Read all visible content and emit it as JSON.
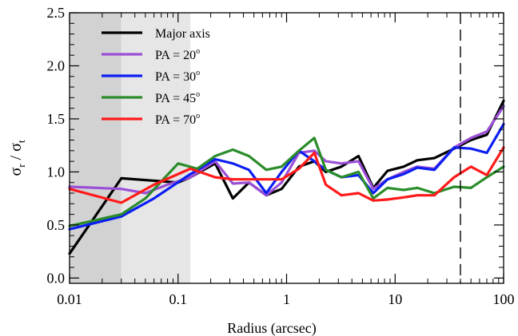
{
  "chart_data": {
    "type": "line",
    "title": "",
    "xlabel": "Radius (arcsec)",
    "ylabel": {
      "main": "σ",
      "sub1": "r",
      "slash": " / ",
      "main2": "σ",
      "sub2": "t"
    },
    "xscale": "log",
    "xlim": [
      0.01,
      100
    ],
    "ylim": [
      -0.05,
      2.5
    ],
    "x_ticks": [
      {
        "value": 0.01,
        "label": "0.01"
      },
      {
        "value": 0.1,
        "label": "0.1"
      },
      {
        "value": 1,
        "label": "1"
      },
      {
        "value": 10,
        "label": "10"
      },
      {
        "value": 100,
        "label": "100"
      }
    ],
    "y_ticks": [
      {
        "value": 0.0,
        "label": "0.0"
      },
      {
        "value": 0.5,
        "label": "0.5"
      },
      {
        "value": 1.0,
        "label": "1.0"
      },
      {
        "value": 1.5,
        "label": "1.5"
      },
      {
        "value": 2.0,
        "label": "2.0"
      },
      {
        "value": 2.5,
        "label": "2.5"
      }
    ],
    "shaded_regions": [
      {
        "x_from": 0.01,
        "x_to": 0.03,
        "color": "#d2d2d2"
      },
      {
        "x_from": 0.03,
        "x_to": 0.13,
        "color": "#e6e6e6"
      }
    ],
    "vertical_line": {
      "x": 40,
      "style": "dashed"
    },
    "legend_position": "top-left",
    "series": [
      {
        "name": "Major axis",
        "color": "#000000",
        "points": [
          [
            0.01,
            0.23
          ],
          [
            0.03,
            0.94
          ],
          [
            0.1,
            0.9
          ],
          [
            0.13,
            0.95
          ],
          [
            0.22,
            1.08
          ],
          [
            0.32,
            0.75
          ],
          [
            0.45,
            0.9
          ],
          [
            0.65,
            0.78
          ],
          [
            0.9,
            0.84
          ],
          [
            1.3,
            1.05
          ],
          [
            1.8,
            1.1
          ],
          [
            2.3,
            1.0
          ],
          [
            3.2,
            1.05
          ],
          [
            4.6,
            1.15
          ],
          [
            6.3,
            0.85
          ],
          [
            8.5,
            1.01
          ],
          [
            12,
            1.05
          ],
          [
            16,
            1.11
          ],
          [
            23,
            1.13
          ],
          [
            35,
            1.22
          ],
          [
            50,
            1.3
          ],
          [
            70,
            1.35
          ],
          [
            100,
            1.67
          ]
        ]
      },
      {
        "name": "PA = 20",
        "sup": "o",
        "color": "#9b4fd6",
        "points": [
          [
            0.01,
            0.86
          ],
          [
            0.03,
            0.84
          ],
          [
            0.05,
            0.8
          ],
          [
            0.08,
            0.88
          ],
          [
            0.13,
            0.95
          ],
          [
            0.22,
            1.1
          ],
          [
            0.32,
            0.89
          ],
          [
            0.45,
            0.9
          ],
          [
            0.65,
            0.78
          ],
          [
            0.9,
            0.9
          ],
          [
            1.3,
            1.18
          ],
          [
            1.8,
            1.2
          ],
          [
            2.3,
            1.1
          ],
          [
            3.2,
            1.08
          ],
          [
            4.6,
            1.1
          ],
          [
            6.3,
            0.84
          ],
          [
            8.5,
            0.93
          ],
          [
            12,
            1.0
          ],
          [
            16,
            1.05
          ],
          [
            23,
            1.03
          ],
          [
            35,
            1.23
          ],
          [
            50,
            1.32
          ],
          [
            70,
            1.38
          ],
          [
            100,
            1.62
          ]
        ]
      },
      {
        "name": "PA = 30",
        "sup": "o",
        "color": "#0a1ef2",
        "points": [
          [
            0.01,
            0.46
          ],
          [
            0.03,
            0.58
          ],
          [
            0.06,
            0.75
          ],
          [
            0.13,
            0.98
          ],
          [
            0.22,
            1.12
          ],
          [
            0.32,
            1.08
          ],
          [
            0.45,
            1.02
          ],
          [
            0.65,
            0.8
          ],
          [
            0.9,
            1.0
          ],
          [
            1.3,
            1.2
          ],
          [
            1.8,
            1.1
          ],
          [
            2.3,
            1.02
          ],
          [
            3.2,
            0.95
          ],
          [
            4.6,
            0.97
          ],
          [
            6.3,
            0.8
          ],
          [
            8.5,
            0.93
          ],
          [
            12,
            0.98
          ],
          [
            16,
            1.04
          ],
          [
            23,
            1.02
          ],
          [
            35,
            1.23
          ],
          [
            50,
            1.22
          ],
          [
            70,
            1.18
          ],
          [
            100,
            1.45
          ]
        ]
      },
      {
        "name": "PA = 45",
        "sup": "o",
        "color": "#2a8c2a",
        "points": [
          [
            0.01,
            0.49
          ],
          [
            0.03,
            0.6
          ],
          [
            0.05,
            0.75
          ],
          [
            0.1,
            1.08
          ],
          [
            0.15,
            1.03
          ],
          [
            0.22,
            1.15
          ],
          [
            0.32,
            1.21
          ],
          [
            0.45,
            1.15
          ],
          [
            0.65,
            1.02
          ],
          [
            0.9,
            1.05
          ],
          [
            1.3,
            1.2
          ],
          [
            1.8,
            1.32
          ],
          [
            2.3,
            1.02
          ],
          [
            3.2,
            0.95
          ],
          [
            4.6,
            1.0
          ],
          [
            6.3,
            0.75
          ],
          [
            8.5,
            0.85
          ],
          [
            12,
            0.83
          ],
          [
            16,
            0.85
          ],
          [
            23,
            0.8
          ],
          [
            35,
            0.86
          ],
          [
            50,
            0.85
          ],
          [
            70,
            0.95
          ],
          [
            100,
            1.05
          ]
        ]
      },
      {
        "name": "PA = 70",
        "sup": "o",
        "color": "#ff1a1a",
        "points": [
          [
            0.01,
            0.84
          ],
          [
            0.03,
            0.71
          ],
          [
            0.06,
            0.88
          ],
          [
            0.13,
            1.03
          ],
          [
            0.22,
            0.95
          ],
          [
            0.32,
            0.93
          ],
          [
            0.45,
            0.93
          ],
          [
            0.65,
            0.93
          ],
          [
            0.9,
            0.93
          ],
          [
            1.3,
            1.03
          ],
          [
            1.8,
            1.18
          ],
          [
            2.3,
            0.88
          ],
          [
            3.2,
            0.78
          ],
          [
            4.6,
            0.8
          ],
          [
            6.3,
            0.73
          ],
          [
            8.5,
            0.74
          ],
          [
            12,
            0.76
          ],
          [
            16,
            0.78
          ],
          [
            23,
            0.78
          ],
          [
            35,
            0.95
          ],
          [
            50,
            1.05
          ],
          [
            70,
            0.97
          ],
          [
            100,
            1.23
          ]
        ]
      }
    ]
  }
}
